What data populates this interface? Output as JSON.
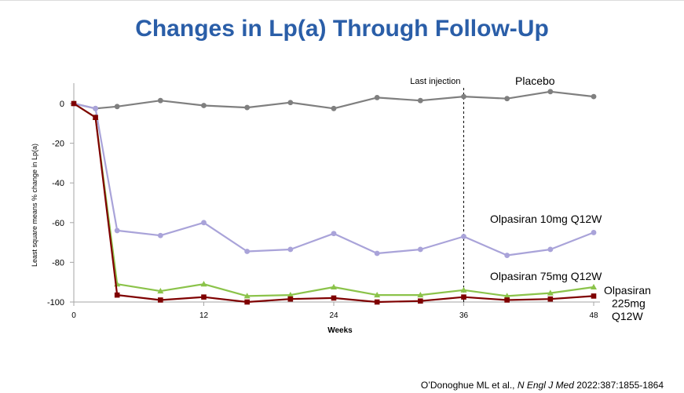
{
  "title": "Changes in Lp(a) Through Follow-Up",
  "citation": {
    "authors": "O’Donoghue ML et al., ",
    "journal": "N Engl J Med",
    "details": " 2022:387:1855-1864"
  },
  "chart_data": {
    "type": "line",
    "xlabel": "Weeks",
    "ylabel": "Least square means % change in Lp(a)",
    "xlim": [
      0,
      48
    ],
    "ylim": [
      -100,
      0
    ],
    "xticks": [
      0,
      12,
      24,
      36,
      48
    ],
    "yticks": [
      0,
      -20,
      -40,
      -60,
      -80,
      -100
    ],
    "grid": false,
    "x": [
      0,
      2,
      4,
      8,
      12,
      16,
      20,
      24,
      28,
      32,
      36,
      40,
      44,
      48
    ],
    "reference_line": {
      "x": 36,
      "label": "Last injection",
      "style": "dashed"
    },
    "series": [
      {
        "name": "Placebo",
        "label_lines": [
          "Placebo"
        ],
        "color": "#7f7f7f",
        "marker": "circle",
        "values": [
          0,
          -2.5,
          -1.5,
          1.5,
          -1,
          -2,
          0.5,
          -2.5,
          3,
          1.5,
          3.5,
          2.5,
          6,
          3.5
        ]
      },
      {
        "name": "Olpasiran 10mg Q12W",
        "label_lines": [
          "Olpasiran  10mg  Q12W"
        ],
        "color": "#a9a3d9",
        "marker": "circle",
        "values": [
          0,
          -2.5,
          -64,
          -66.5,
          -60,
          -74.5,
          -73.5,
          -65.5,
          -75.5,
          -73.5,
          -67,
          -76.5,
          -73.5,
          -65
        ]
      },
      {
        "name": "Olpasiran 75mg Q12W",
        "label_lines": [
          "Olpasiran  75mg  Q12W"
        ],
        "color": "#8bc34a",
        "marker": "triangle",
        "values": [
          0,
          -7,
          -91,
          -94.5,
          -91,
          -97,
          -96.5,
          -92.5,
          -96.5,
          -96.5,
          -94,
          -97,
          -95.5,
          -92.5
        ]
      },
      {
        "name": "Olpasiran 225mg Q12W",
        "label_lines": [
          "Olpasiran",
          "225mg",
          "Q12W"
        ],
        "color": "#7f0000",
        "marker": "square",
        "values": [
          0,
          -7,
          -96.5,
          -99,
          -97.5,
          -100,
          -98.5,
          -98,
          -100,
          -99.5,
          -97.5,
          -99,
          -98.5,
          -97
        ]
      }
    ]
  }
}
